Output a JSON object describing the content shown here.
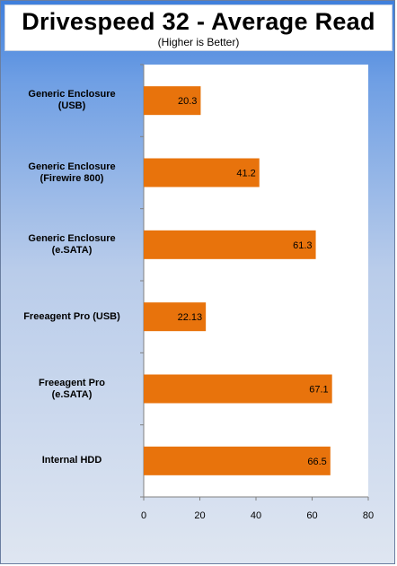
{
  "chart_data": {
    "type": "bar",
    "orientation": "horizontal",
    "title": "Drivespeed 32 - Average Read",
    "subtitle": "(Higher is Better)",
    "categories": [
      "Generic Enclosure\n(USB)",
      "Generic Enclosure\n(Firewire 800)",
      "Generic Enclosure\n(e.SATA)",
      "Freeagent Pro (USB)",
      "Freeagent Pro\n(e.SATA)",
      "Internal HDD"
    ],
    "values": [
      20.3,
      41.2,
      61.3,
      22.13,
      67.1,
      66.5
    ],
    "value_labels": [
      "20.3",
      "41.2",
      "61.3",
      "22.13",
      "67.1",
      "66.5"
    ],
    "xlim": [
      0,
      80
    ],
    "ticks": [
      0,
      20,
      40,
      60,
      80
    ],
    "tick_labels": [
      "0",
      "20",
      "40",
      "60",
      "80"
    ],
    "bar_color": "#e8730c",
    "grid": false,
    "legend": "none"
  }
}
